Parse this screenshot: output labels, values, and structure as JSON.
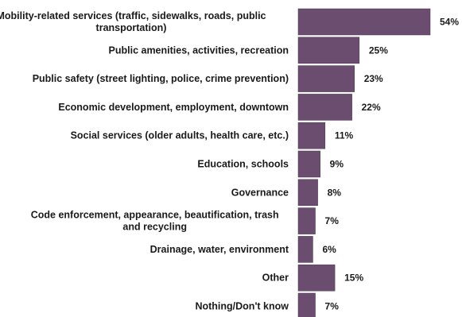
{
  "chart_data": {
    "type": "bar",
    "orientation": "horizontal",
    "categories": [
      [
        "Mobility-related services (traffic, sidewalks, roads, public",
        "transportation)"
      ],
      [
        "Public amenities, activities, recreation"
      ],
      [
        "Public safety (street lighting, police, crime prevention)"
      ],
      [
        "Economic development, employment, downtown"
      ],
      [
        "Social services (older adults, health care, etc.)"
      ],
      [
        "Education, schools"
      ],
      [
        "Governance"
      ],
      [
        "Code enforcement, appearance, beautification, trash",
        "and recycling"
      ],
      [
        "Drainage, water, environment"
      ],
      [
        "Other"
      ],
      [
        "Nothing/Don't know"
      ]
    ],
    "values": [
      54,
      25,
      23,
      22,
      11,
      9,
      8,
      7,
      6,
      15,
      7
    ],
    "value_labels": [
      "54%",
      "25%",
      "23%",
      "22%",
      "11%",
      "9%",
      "8%",
      "7%",
      "6%",
      "15%",
      "7%"
    ],
    "bar_color": "#6b4e6f",
    "xlim": [
      0,
      54
    ],
    "grid": false
  }
}
